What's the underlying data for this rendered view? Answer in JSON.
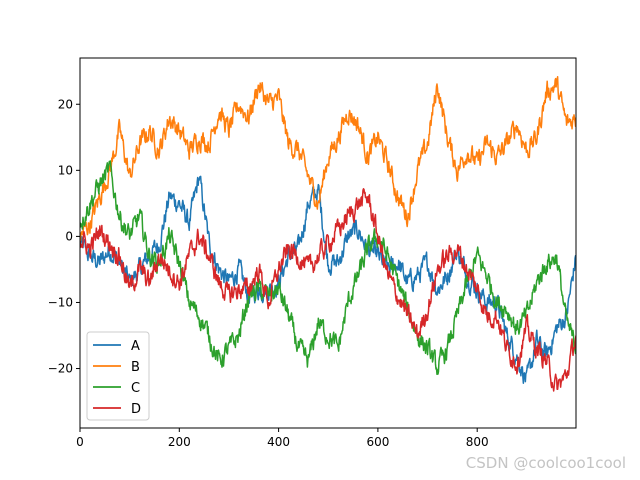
{
  "chart_data": {
    "type": "line",
    "title": "",
    "xlabel": "",
    "ylabel": "",
    "xlim": [
      0,
      999
    ],
    "ylim": [
      -29,
      27
    ],
    "xticks": [
      0,
      200,
      400,
      600,
      800
    ],
    "yticks": [
      -20,
      -10,
      0,
      10,
      20
    ],
    "ytick_labels": [
      "−20",
      "−10",
      "0",
      "10",
      "20"
    ],
    "grid": false,
    "legend_position": "lower-left",
    "series": [
      {
        "name": "A",
        "color": "#1f77b4",
        "points": [
          [
            0,
            -1
          ],
          [
            20,
            -3
          ],
          [
            40,
            -4
          ],
          [
            60,
            -2
          ],
          [
            80,
            -4
          ],
          [
            100,
            -7
          ],
          [
            120,
            -5
          ],
          [
            140,
            -3
          ],
          [
            160,
            -1
          ],
          [
            180,
            6
          ],
          [
            200,
            5
          ],
          [
            220,
            2
          ],
          [
            240,
            9
          ],
          [
            260,
            -1
          ],
          [
            280,
            -5
          ],
          [
            300,
            -7
          ],
          [
            320,
            -5
          ],
          [
            340,
            -9
          ],
          [
            360,
            -8
          ],
          [
            380,
            -8
          ],
          [
            400,
            -7
          ],
          [
            420,
            -3
          ],
          [
            440,
            -2
          ],
          [
            460,
            5
          ],
          [
            480,
            7
          ],
          [
            500,
            -4
          ],
          [
            520,
            -4
          ],
          [
            540,
            0
          ],
          [
            560,
            1
          ],
          [
            580,
            -2
          ],
          [
            600,
            -3
          ],
          [
            620,
            -5
          ],
          [
            640,
            -4
          ],
          [
            660,
            -7
          ],
          [
            680,
            -6
          ],
          [
            700,
            -4
          ],
          [
            720,
            -8
          ],
          [
            740,
            -6
          ],
          [
            760,
            -2
          ],
          [
            780,
            -6
          ],
          [
            800,
            -8
          ],
          [
            820,
            -10
          ],
          [
            840,
            -10
          ],
          [
            860,
            -15
          ],
          [
            880,
            -18
          ],
          [
            900,
            -22
          ],
          [
            920,
            -16
          ],
          [
            940,
            -18
          ],
          [
            960,
            -14
          ],
          [
            980,
            -12
          ],
          [
            999,
            -3
          ]
        ]
      },
      {
        "name": "B",
        "color": "#ff7f0e",
        "points": [
          [
            0,
            0
          ],
          [
            20,
            2
          ],
          [
            40,
            6
          ],
          [
            60,
            10
          ],
          [
            80,
            16
          ],
          [
            100,
            9
          ],
          [
            120,
            14
          ],
          [
            140,
            16
          ],
          [
            160,
            13
          ],
          [
            180,
            18
          ],
          [
            200,
            16
          ],
          [
            220,
            13
          ],
          [
            240,
            15
          ],
          [
            260,
            14
          ],
          [
            280,
            19
          ],
          [
            300,
            16
          ],
          [
            320,
            20
          ],
          [
            340,
            18
          ],
          [
            360,
            23
          ],
          [
            380,
            20
          ],
          [
            400,
            21
          ],
          [
            420,
            14
          ],
          [
            440,
            13
          ],
          [
            460,
            9
          ],
          [
            480,
            5
          ],
          [
            500,
            12
          ],
          [
            520,
            15
          ],
          [
            540,
            19
          ],
          [
            560,
            17
          ],
          [
            580,
            12
          ],
          [
            600,
            15
          ],
          [
            620,
            11
          ],
          [
            640,
            6
          ],
          [
            660,
            3
          ],
          [
            680,
            10
          ],
          [
            700,
            14
          ],
          [
            720,
            23
          ],
          [
            740,
            15
          ],
          [
            760,
            10
          ],
          [
            780,
            13
          ],
          [
            800,
            11
          ],
          [
            820,
            14
          ],
          [
            840,
            12
          ],
          [
            860,
            14
          ],
          [
            880,
            17
          ],
          [
            900,
            13
          ],
          [
            920,
            15
          ],
          [
            940,
            22
          ],
          [
            960,
            23
          ],
          [
            980,
            17
          ],
          [
            999,
            18
          ]
        ]
      },
      {
        "name": "C",
        "color": "#2ca02c",
        "points": [
          [
            0,
            2
          ],
          [
            20,
            5
          ],
          [
            40,
            8
          ],
          [
            60,
            10
          ],
          [
            80,
            3
          ],
          [
            100,
            0
          ],
          [
            120,
            3
          ],
          [
            140,
            -3
          ],
          [
            160,
            -4
          ],
          [
            180,
            0
          ],
          [
            200,
            -4
          ],
          [
            220,
            -10
          ],
          [
            240,
            -12
          ],
          [
            260,
            -15
          ],
          [
            280,
            -19
          ],
          [
            300,
            -17
          ],
          [
            320,
            -15
          ],
          [
            340,
            -9
          ],
          [
            360,
            -8
          ],
          [
            380,
            -9
          ],
          [
            400,
            -8
          ],
          [
            420,
            -12
          ],
          [
            440,
            -17
          ],
          [
            460,
            -19
          ],
          [
            480,
            -13
          ],
          [
            500,
            -15
          ],
          [
            520,
            -17
          ],
          [
            540,
            -10
          ],
          [
            560,
            -6
          ],
          [
            580,
            -2
          ],
          [
            600,
            0
          ],
          [
            620,
            -3
          ],
          [
            640,
            -7
          ],
          [
            660,
            -11
          ],
          [
            680,
            -15
          ],
          [
            700,
            -17
          ],
          [
            720,
            -20
          ],
          [
            740,
            -17
          ],
          [
            760,
            -12
          ],
          [
            780,
            -7
          ],
          [
            800,
            -3
          ],
          [
            820,
            -6
          ],
          [
            840,
            -10
          ],
          [
            860,
            -11
          ],
          [
            880,
            -14
          ],
          [
            900,
            -12
          ],
          [
            920,
            -7
          ],
          [
            940,
            -4
          ],
          [
            960,
            -3
          ],
          [
            980,
            -13
          ],
          [
            999,
            -17
          ]
        ]
      },
      {
        "name": "D",
        "color": "#d62728",
        "points": [
          [
            0,
            0
          ],
          [
            20,
            -2
          ],
          [
            40,
            1
          ],
          [
            60,
            -1
          ],
          [
            80,
            -3
          ],
          [
            100,
            -8
          ],
          [
            120,
            -5
          ],
          [
            140,
            -7
          ],
          [
            160,
            -3
          ],
          [
            180,
            -5
          ],
          [
            200,
            -7
          ],
          [
            220,
            -3
          ],
          [
            240,
            0
          ],
          [
            260,
            -3
          ],
          [
            280,
            -7
          ],
          [
            300,
            -9
          ],
          [
            320,
            -8
          ],
          [
            340,
            -8
          ],
          [
            360,
            -5
          ],
          [
            380,
            -10
          ],
          [
            400,
            -5
          ],
          [
            420,
            -2
          ],
          [
            440,
            -3
          ],
          [
            460,
            -5
          ],
          [
            480,
            -3
          ],
          [
            500,
            -1
          ],
          [
            520,
            1
          ],
          [
            540,
            3
          ],
          [
            560,
            5
          ],
          [
            580,
            6
          ],
          [
            600,
            0
          ],
          [
            620,
            -6
          ],
          [
            640,
            -9
          ],
          [
            660,
            -12
          ],
          [
            680,
            -15
          ],
          [
            700,
            -11
          ],
          [
            720,
            -5
          ],
          [
            740,
            -3
          ],
          [
            760,
            -2
          ],
          [
            780,
            -5
          ],
          [
            800,
            -8
          ],
          [
            820,
            -12
          ],
          [
            840,
            -12
          ],
          [
            860,
            -17
          ],
          [
            880,
            -19
          ],
          [
            900,
            -14
          ],
          [
            920,
            -17
          ],
          [
            940,
            -19
          ],
          [
            960,
            -23
          ],
          [
            980,
            -21
          ],
          [
            999,
            -15
          ]
        ]
      }
    ]
  },
  "watermark": "CSDN @coolcoo1cool"
}
